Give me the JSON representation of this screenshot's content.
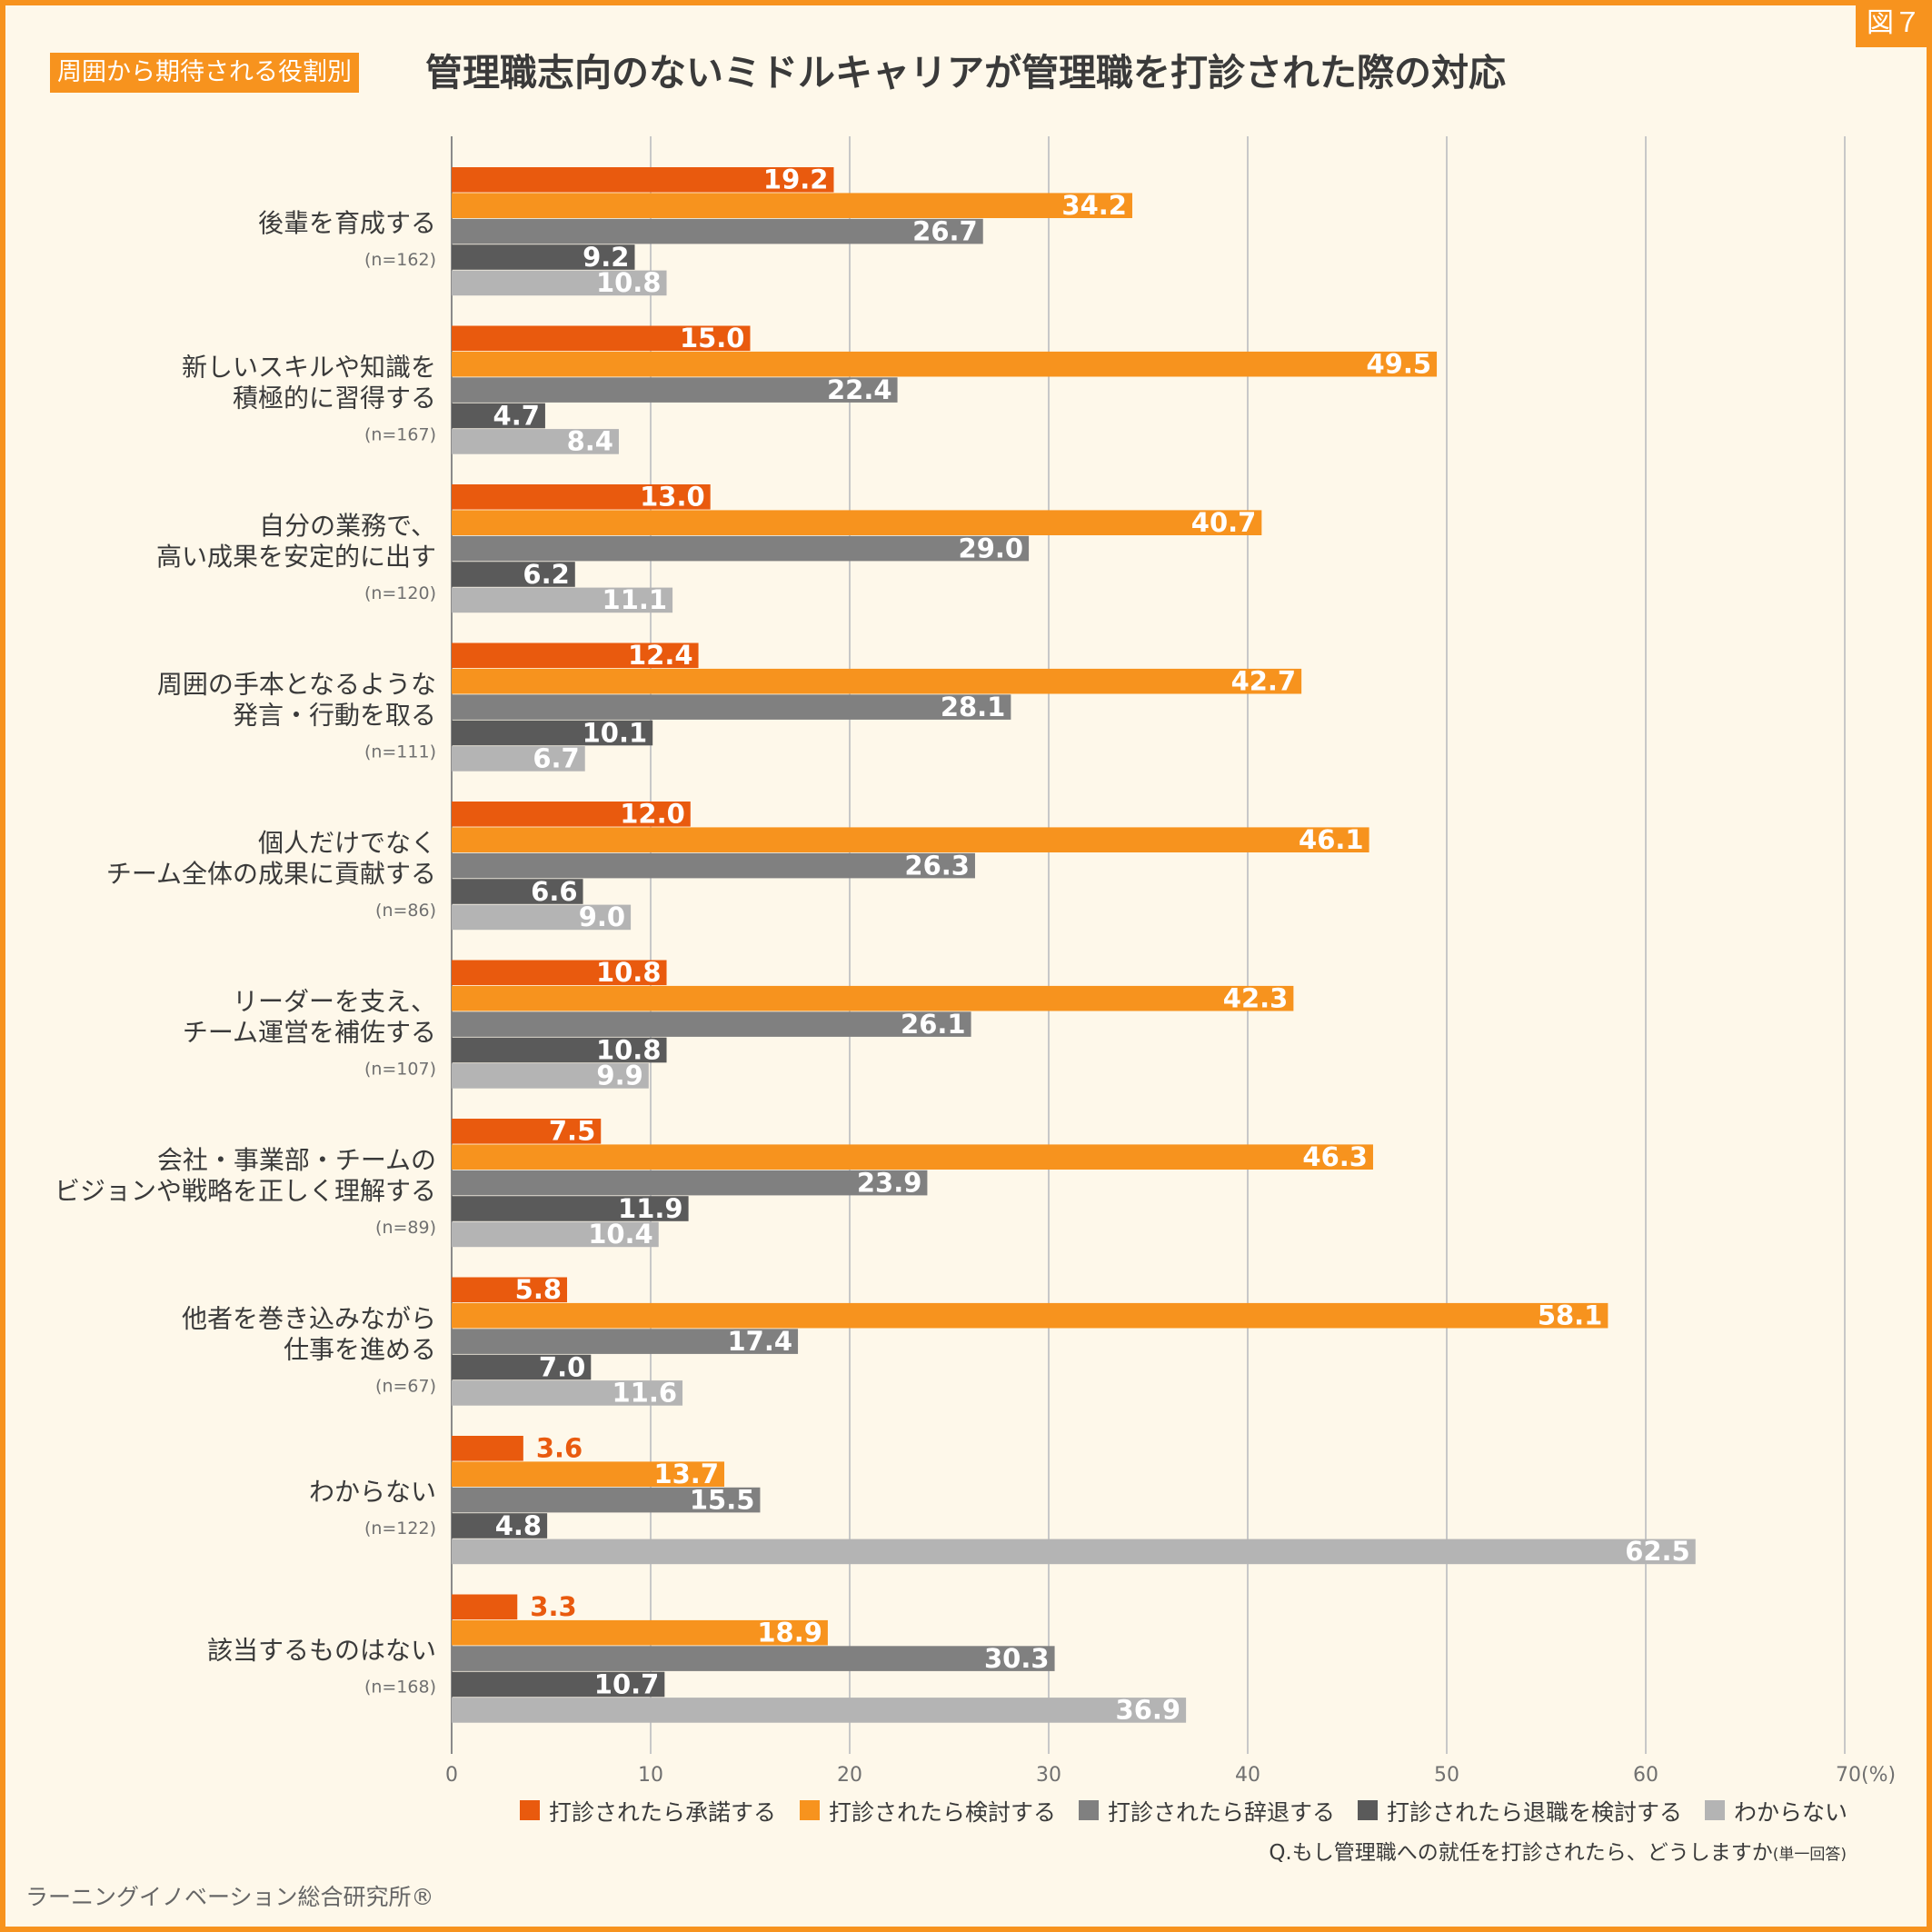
{
  "figure_label": "図７",
  "header": {
    "tag": "周囲から期待される役割別",
    "title": "管理職志向のないミドルキャリアが管理職を打診された際の対応"
  },
  "footer": {
    "source": "ラーニングイノベーション総合研究所®"
  },
  "chart_data": {
    "type": "bar",
    "orientation": "horizontal",
    "question": "Q.もし管理職への就任を打診されたら、どうしますか",
    "question_note": "(単一回答)",
    "categories": [
      {
        "label": [
          "後輩を育成する"
        ],
        "n": "(n=162)"
      },
      {
        "label": [
          "新しいスキルや知識を",
          "積極的に習得する"
        ],
        "n": "(n=167)"
      },
      {
        "label": [
          "自分の業務で、",
          "高い成果を安定的に出す"
        ],
        "n": "(n=120)"
      },
      {
        "label": [
          "周囲の手本となるような",
          "発言・行動を取る"
        ],
        "n": "(n=111)"
      },
      {
        "label": [
          "個人だけでなく",
          "チーム全体の成果に貢献する"
        ],
        "n": "(n=86)"
      },
      {
        "label": [
          "リーダーを支え、",
          "チーム運営を補佐する"
        ],
        "n": "(n=107)"
      },
      {
        "label": [
          "会社・事業部・チームの",
          "ビジョンや戦略を正しく理解する"
        ],
        "n": "(n=89)"
      },
      {
        "label": [
          "他者を巻き込みながら",
          "仕事を進める"
        ],
        "n": "(n=67)"
      },
      {
        "label": [
          "わからない"
        ],
        "n": "(n=122)"
      },
      {
        "label": [
          "該当するものはない"
        ],
        "n": "(n=168)"
      }
    ],
    "series": [
      {
        "name": "打診されたら承諾する",
        "color": "#e95a0e",
        "values": [
          19.2,
          15.0,
          13.0,
          12.4,
          12.0,
          10.8,
          7.5,
          5.8,
          3.6,
          3.3
        ]
      },
      {
        "name": "打診されたら検討する",
        "color": "#f7931e",
        "values": [
          34.2,
          49.5,
          40.7,
          42.7,
          46.1,
          42.3,
          46.3,
          58.1,
          13.7,
          18.9
        ]
      },
      {
        "name": "打診されたら辞退する",
        "color": "#808080",
        "values": [
          26.7,
          22.4,
          29.0,
          28.1,
          26.3,
          26.1,
          23.9,
          17.4,
          15.5,
          30.3
        ]
      },
      {
        "name": "打診されたら退職を検討する",
        "color": "#5a5a5a",
        "values": [
          9.2,
          4.7,
          6.2,
          10.1,
          6.6,
          10.8,
          11.9,
          7.0,
          4.8,
          10.7
        ]
      },
      {
        "name": "わからない",
        "color": "#b4b4b4",
        "values": [
          10.8,
          8.4,
          11.1,
          6.7,
          9.0,
          9.9,
          10.4,
          11.6,
          62.5,
          36.9
        ]
      }
    ],
    "value_labels": [
      [
        "19.2",
        "34.2",
        "26.7",
        "9.2",
        "10.8"
      ],
      [
        "15.0",
        "49.5",
        "22.4",
        "4.7",
        "8.4"
      ],
      [
        "13.0",
        "40.7",
        "29.0",
        "6.2",
        "11.1"
      ],
      [
        "12.4",
        "42.7",
        "28.1",
        "10.1",
        "6.7"
      ],
      [
        "12.0",
        "46.1",
        "26.3",
        "6.6",
        "9.0"
      ],
      [
        "10.8",
        "42.3",
        "26.1",
        "10.8",
        "9.9"
      ],
      [
        "7.5",
        "46.3",
        "23.9",
        "11.9",
        "10.4"
      ],
      [
        "5.8",
        "58.1",
        "17.4",
        "7.0",
        "11.6"
      ],
      [
        "3.6",
        "13.7",
        "15.5",
        "4.8",
        "62.5"
      ],
      [
        "3.3",
        "18.9",
        "30.3",
        "10.7",
        "36.9"
      ]
    ],
    "x_ticks": [
      "0",
      "10",
      "20",
      "30",
      "40",
      "50",
      "60",
      "70(%)"
    ],
    "xlim": [
      0,
      70
    ],
    "grid": true,
    "legend_position": "bottom-right"
  }
}
